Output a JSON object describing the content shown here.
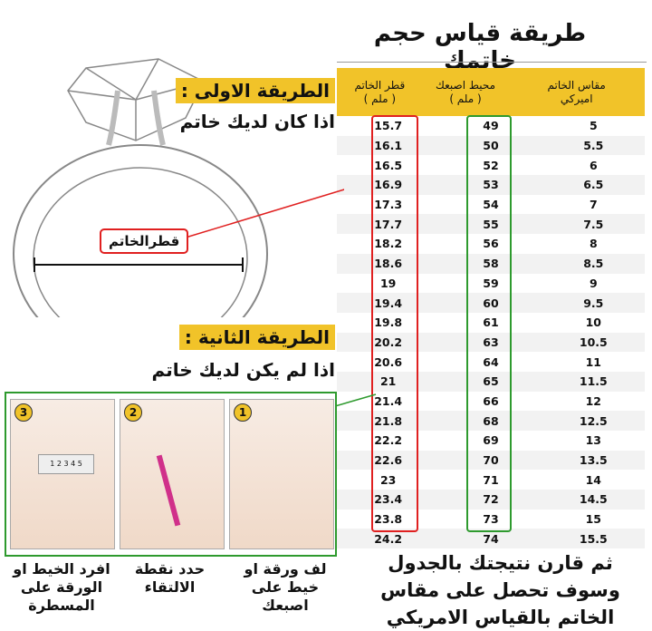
{
  "title": "طريقة قياس حجم خاتمك",
  "table": {
    "headers": {
      "us_size": "مقاس الخاتم اميركي",
      "circumference": "محيط اصبعك",
      "circumference_unit": "( ملم )",
      "diameter": "قطر الخاتم",
      "diameter_unit": "( ملم )"
    },
    "rows": [
      {
        "us": "5",
        "circ": "49",
        "diam": "15.7"
      },
      {
        "us": "5.5",
        "circ": "50",
        "diam": "16.1"
      },
      {
        "us": "6",
        "circ": "52",
        "diam": "16.5"
      },
      {
        "us": "6.5",
        "circ": "53",
        "diam": "16.9"
      },
      {
        "us": "7",
        "circ": "54",
        "diam": "17.3"
      },
      {
        "us": "7.5",
        "circ": "55",
        "diam": "17.7"
      },
      {
        "us": "8",
        "circ": "56",
        "diam": "18.2"
      },
      {
        "us": "8.5",
        "circ": "58",
        "diam": "18.6"
      },
      {
        "us": "9",
        "circ": "59",
        "diam": "19"
      },
      {
        "us": "9.5",
        "circ": "60",
        "diam": "19.4"
      },
      {
        "us": "10",
        "circ": "61",
        "diam": "19.8"
      },
      {
        "us": "10.5",
        "circ": "63",
        "diam": "20.2"
      },
      {
        "us": "11",
        "circ": "64",
        "diam": "20.6"
      },
      {
        "us": "11.5",
        "circ": "65",
        "diam": "21"
      },
      {
        "us": "12",
        "circ": "66",
        "diam": "21.4"
      },
      {
        "us": "12.5",
        "circ": "68",
        "diam": "21.8"
      },
      {
        "us": "13",
        "circ": "69",
        "diam": "22.2"
      },
      {
        "us": "13.5",
        "circ": "70",
        "diam": "22.6"
      },
      {
        "us": "14",
        "circ": "71",
        "diam": "23"
      },
      {
        "us": "14.5",
        "circ": "72",
        "diam": "23.4"
      },
      {
        "us": "15",
        "circ": "73",
        "diam": "23.8"
      },
      {
        "us": "15.5",
        "circ": "74",
        "diam": "24.2"
      }
    ]
  },
  "method1": {
    "label": "الطريقة الاولى :",
    "text": "اذا كان لديك خاتم",
    "diameter_label": "قطرالخاتم"
  },
  "method2": {
    "label": "الطريقة الثانية :",
    "text": "اذا لم يكن لديك خاتم"
  },
  "steps": [
    {
      "num": "1",
      "caption": "لف ورقة او خيط على اصبعك"
    },
    {
      "num": "2",
      "caption": "حدد نقطة الالتقاء"
    },
    {
      "num": "3",
      "caption": "افرد الخيط او الورقة على المسطرة"
    }
  ],
  "ruler_text": "1 2 3 4 5",
  "final_text": "ثم قارن نتيجتك بالجدول وسوف تحصل على مقاس الخاتم بالقياس الامريكي",
  "colors": {
    "yellow": "#f1c329",
    "red": "#e02020",
    "green": "#2e9a2e"
  }
}
